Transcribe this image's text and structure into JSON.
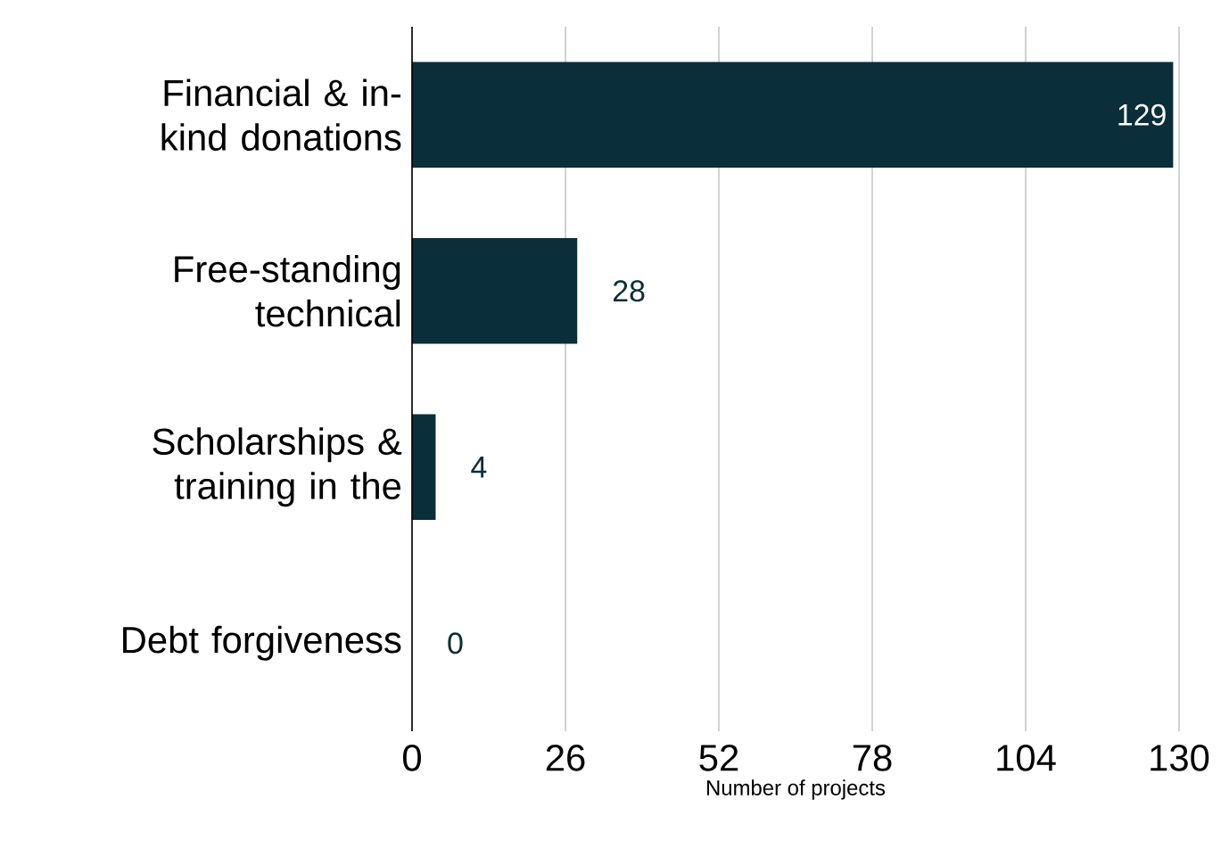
{
  "chart_data": {
    "type": "bar",
    "orientation": "horizontal",
    "categories": [
      "Financial & in-kind donations",
      "Free-standing technical",
      "Scholarships & training in the",
      "Debt forgiveness"
    ],
    "values": [
      129,
      28,
      4,
      0
    ],
    "color": "#0a2e3a",
    "xlim": [
      0,
      130
    ],
    "xticks": [
      0,
      26,
      52,
      78,
      104,
      130
    ],
    "xlabel": "Number of projects",
    "grid": "x",
    "data_labels": true
  }
}
